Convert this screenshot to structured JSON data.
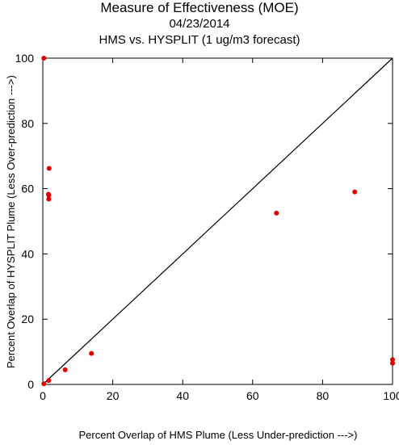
{
  "chart_data": {
    "type": "scatter",
    "title": "Measure of Effectiveness (MOE)",
    "subtitle": "04/23/2014",
    "subtitle2": "HMS vs. HYSPLIT  (1 ug/m3 forecast)",
    "xlabel": "Percent Overlap of HMS Plume (Less Under-prediction --->)",
    "ylabel": "Percent Overlap of HYSPLIT Plume (Less Over-prediction --->)",
    "xlim": [
      0,
      100
    ],
    "ylim": [
      0,
      100
    ],
    "xticks": [
      0,
      20,
      40,
      60,
      80,
      100
    ],
    "yticks": [
      0,
      20,
      40,
      60,
      80,
      100
    ],
    "grid": false,
    "diagonal_line": true,
    "point_color": "#e00000",
    "points": [
      {
        "x": 0.3,
        "y": 100
      },
      {
        "x": 1.8,
        "y": 66.2
      },
      {
        "x": 1.6,
        "y": 58.3
      },
      {
        "x": 1.7,
        "y": 58.0
      },
      {
        "x": 1.7,
        "y": 56.8
      },
      {
        "x": 66.8,
        "y": 52.5
      },
      {
        "x": 89.2,
        "y": 59.0
      },
      {
        "x": 13.9,
        "y": 9.5
      },
      {
        "x": 6.4,
        "y": 4.5
      },
      {
        "x": 1.7,
        "y": 1.2
      },
      {
        "x": 0.3,
        "y": 0.2
      },
      {
        "x": 100,
        "y": 7.6
      },
      {
        "x": 100,
        "y": 6.5
      }
    ]
  }
}
